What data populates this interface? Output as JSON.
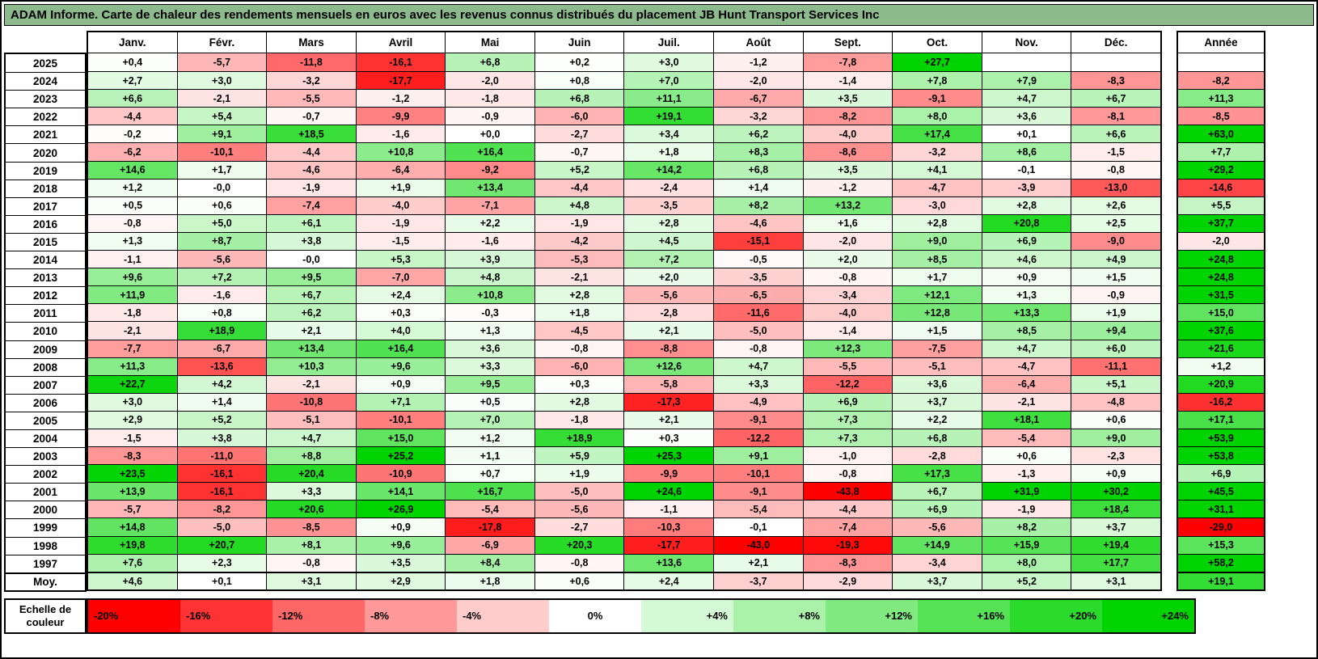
{
  "title": "ADAM Informe. Carte de chaleur des rendements mensuels en euros avec les revenus connus distribués du placement JB Hunt Transport Services Inc",
  "colors": {
    "title_bg": "#8CBA8C",
    "border": "#000000",
    "negative_max": "#FF0000",
    "neutral": "#FFFFFF",
    "positive_max": "#00D400"
  },
  "legend": {
    "label": "Echelle de couleur",
    "ticks": [
      "-20%",
      "-16%",
      "-12%",
      "-8%",
      "-4%",
      "0%",
      "+4%",
      "+8%",
      "+12%",
      "+16%",
      "+20%",
      "+24%"
    ]
  },
  "chart_data": {
    "type": "heatmap",
    "title": "Carte de chaleur des rendements mensuels en euros - JB Hunt Transport Services Inc",
    "unit": "%",
    "decimal_separator": ",",
    "columns": [
      "Janv.",
      "Févr.",
      "Mars",
      "Avril",
      "Mai",
      "Juin",
      "Juil.",
      "Août",
      "Sept.",
      "Oct.",
      "Nov.",
      "Déc."
    ],
    "annual_label": "Année",
    "average_label": "Moy.",
    "color_scale": {
      "negative_limit": -20,
      "positive_limit": 24,
      "negative_color": "#FF0000",
      "neutral_color": "#FFFFFF",
      "positive_color": "#00D400"
    },
    "rows": [
      {
        "label": "2025",
        "values": [
          "+0,4",
          "-5,7",
          "-11,8",
          "-16,1",
          "+6,8",
          "+0,2",
          "+3,0",
          "-1,2",
          "-7,8",
          "+27,7",
          "",
          ""
        ],
        "annual": ""
      },
      {
        "label": "2024",
        "values": [
          "+2,7",
          "+3,0",
          "-3,2",
          "-17,7",
          "-2,0",
          "+0,8",
          "+7,0",
          "-2,0",
          "-1,4",
          "+7,8",
          "+7,9",
          "-8,3"
        ],
        "annual": "-8,2"
      },
      {
        "label": "2023",
        "values": [
          "+6,6",
          "-2,1",
          "-5,5",
          "-1,2",
          "-1,8",
          "+6,8",
          "+11,1",
          "-6,7",
          "+3,5",
          "-9,1",
          "+4,7",
          "+6,7"
        ],
        "annual": "+11,3"
      },
      {
        "label": "2022",
        "values": [
          "-4,4",
          "+5,4",
          "-0,7",
          "-9,9",
          "-0,9",
          "-6,0",
          "+19,1",
          "-3,2",
          "-8,2",
          "+8,0",
          "+3,6",
          "-8,1"
        ],
        "annual": "-8,5"
      },
      {
        "label": "2021",
        "values": [
          "-0,2",
          "+9,1",
          "+18,5",
          "-1,6",
          "+0,0",
          "-2,7",
          "+3,4",
          "+6,2",
          "-4,0",
          "+17,4",
          "+0,1",
          "+6,6"
        ],
        "annual": "+63,0"
      },
      {
        "label": "2020",
        "values": [
          "-6,2",
          "-10,1",
          "-4,4",
          "+10,8",
          "+16,4",
          "-0,7",
          "+1,8",
          "+8,3",
          "-8,6",
          "-3,2",
          "+8,6",
          "-1,5"
        ],
        "annual": "+7,7"
      },
      {
        "label": "2019",
        "values": [
          "+14,6",
          "+1,7",
          "-4,6",
          "-6,4",
          "-9,2",
          "+5,2",
          "+14,2",
          "+6,8",
          "+3,5",
          "+4,1",
          "-0,1",
          "-0,8"
        ],
        "annual": "+29,2"
      },
      {
        "label": "2018",
        "values": [
          "+1,2",
          "-0,0",
          "-1,9",
          "+1,9",
          "+13,4",
          "-4,4",
          "-2,4",
          "+1,4",
          "-1,2",
          "-4,7",
          "-3,9",
          "-13,0"
        ],
        "annual": "-14,6"
      },
      {
        "label": "2017",
        "values": [
          "+0,5",
          "+0,6",
          "-7,4",
          "-4,0",
          "-7,1",
          "+4,8",
          "-3,5",
          "+8,2",
          "+13,2",
          "-3,0",
          "+2,8",
          "+2,6"
        ],
        "annual": "+5,5"
      },
      {
        "label": "2016",
        "values": [
          "-0,8",
          "+5,0",
          "+6,1",
          "-1,9",
          "+2,2",
          "-1,9",
          "+2,8",
          "-4,6",
          "+1,6",
          "+2,8",
          "+20,8",
          "+2,5"
        ],
        "annual": "+37,7"
      },
      {
        "label": "2015",
        "values": [
          "+1,3",
          "+8,7",
          "+3,8",
          "-1,5",
          "-1,6",
          "-4,2",
          "+4,5",
          "-15,1",
          "-2,0",
          "+9,0",
          "+6,9",
          "-9,0"
        ],
        "annual": "-2,0"
      },
      {
        "label": "2014",
        "values": [
          "-1,1",
          "-5,6",
          "-0,0",
          "+5,3",
          "+3,9",
          "-5,3",
          "+7,2",
          "-0,5",
          "+2,0",
          "+8,5",
          "+4,6",
          "+4,9"
        ],
        "annual": "+24,8"
      },
      {
        "label": "2013",
        "values": [
          "+9,6",
          "+7,2",
          "+9,5",
          "-7,0",
          "+4,8",
          "-2,1",
          "+2,0",
          "-3,5",
          "-0,8",
          "+1,7",
          "+0,9",
          "+1,5"
        ],
        "annual": "+24,8"
      },
      {
        "label": "2012",
        "values": [
          "+11,9",
          "-1,6",
          "+6,7",
          "+2,4",
          "+10,8",
          "+2,8",
          "-5,6",
          "-6,5",
          "-3,4",
          "+12,1",
          "+1,3",
          "-0,9"
        ],
        "annual": "+31,5"
      },
      {
        "label": "2011",
        "values": [
          "-1,8",
          "+0,8",
          "+6,2",
          "+0,3",
          "-0,3",
          "+1,8",
          "-2,8",
          "-11,6",
          "-4,0",
          "+12,8",
          "+13,3",
          "+1,9"
        ],
        "annual": "+15,0"
      },
      {
        "label": "2010",
        "values": [
          "-2,1",
          "+18,9",
          "+2,1",
          "+4,0",
          "+1,3",
          "-4,5",
          "+2,1",
          "-5,0",
          "-1,4",
          "+1,5",
          "+8,5",
          "+9,4"
        ],
        "annual": "+37,6"
      },
      {
        "label": "2009",
        "values": [
          "-7,7",
          "-6,7",
          "+13,4",
          "+16,4",
          "+3,6",
          "-0,8",
          "-8,8",
          "-0,8",
          "+12,3",
          "-7,5",
          "+4,7",
          "+6,0"
        ],
        "annual": "+21,6"
      },
      {
        "label": "2008",
        "values": [
          "+11,3",
          "-13,6",
          "+10,3",
          "+9,6",
          "+3,3",
          "-6,0",
          "+12,6",
          "+4,7",
          "-5,5",
          "-5,1",
          "-4,7",
          "-11,1"
        ],
        "annual": "+1,2"
      },
      {
        "label": "2007",
        "values": [
          "+22,7",
          "+4,2",
          "-2,1",
          "+0,9",
          "+9,5",
          "+0,3",
          "-5,8",
          "+3,3",
          "-12,2",
          "+3,6",
          "-6,4",
          "+5,1"
        ],
        "annual": "+20,9"
      },
      {
        "label": "2006",
        "values": [
          "+3,0",
          "+1,4",
          "-10,8",
          "+7,1",
          "+0,5",
          "+2,8",
          "-17,3",
          "-4,9",
          "+6,9",
          "+3,7",
          "-2,1",
          "-4,8"
        ],
        "annual": "-16,2"
      },
      {
        "label": "2005",
        "values": [
          "+2,9",
          "+5,2",
          "-5,1",
          "-10,1",
          "+7,0",
          "-1,8",
          "+2,1",
          "-9,1",
          "+7,3",
          "+2,2",
          "+18,1",
          "+0,6"
        ],
        "annual": "+17,1"
      },
      {
        "label": "2004",
        "values": [
          "-1,5",
          "+3,8",
          "+4,7",
          "+15,0",
          "+1,2",
          "+18,9",
          "+0,3",
          "-12,2",
          "+7,3",
          "+6,8",
          "-5,4",
          "+9,0"
        ],
        "annual": "+53,9"
      },
      {
        "label": "2003",
        "values": [
          "-8,3",
          "-11,0",
          "+8,8",
          "+25,2",
          "+1,1",
          "+5,9",
          "+25,3",
          "+9,1",
          "-1,0",
          "-2,8",
          "+0,6",
          "-2,3"
        ],
        "annual": "+53,8"
      },
      {
        "label": "2002",
        "values": [
          "+23,5",
          "-16,1",
          "+20,4",
          "-10,9",
          "+0,7",
          "+1,9",
          "-9,9",
          "-10,1",
          "-0,8",
          "+17,3",
          "-1,3",
          "+0,9"
        ],
        "annual": "+6,9"
      },
      {
        "label": "2001",
        "values": [
          "+13,9",
          "-16,1",
          "+3,3",
          "+14,1",
          "+16,7",
          "-5,0",
          "+24,6",
          "-9,1",
          "-43,8",
          "+6,7",
          "+31,9",
          "+30,2"
        ],
        "annual": "+45,5"
      },
      {
        "label": "2000",
        "values": [
          "-5,7",
          "-8,2",
          "+20,6",
          "+26,9",
          "-5,4",
          "-5,6",
          "-1,1",
          "-5,4",
          "-4,4",
          "+6,9",
          "-1,9",
          "+18,4"
        ],
        "annual": "+31,1"
      },
      {
        "label": "1999",
        "values": [
          "+14,8",
          "-5,0",
          "-8,5",
          "+0,9",
          "-17,8",
          "-2,7",
          "-10,3",
          "-0,1",
          "-7,4",
          "-5,6",
          "+8,2",
          "+3,7"
        ],
        "annual": "-29,0"
      },
      {
        "label": "1998",
        "values": [
          "+19,8",
          "+20,7",
          "+8,1",
          "+9,6",
          "-6,9",
          "+20,3",
          "-17,7",
          "-43,0",
          "-19,3",
          "+14,9",
          "+15,9",
          "+19,4"
        ],
        "annual": "+15,3"
      },
      {
        "label": "1997",
        "values": [
          "+7,6",
          "+2,3",
          "-0,8",
          "+3,5",
          "+8,4",
          "-0,8",
          "+13,6",
          "+2,1",
          "-8,3",
          "-3,4",
          "+8,0",
          "+17,7"
        ],
        "annual": "+58,2"
      },
      {
        "label": "Moy.",
        "values": [
          "+4,6",
          "+0,1",
          "+3,1",
          "+2,9",
          "+1,8",
          "+0,6",
          "+2,4",
          "-3,7",
          "-2,9",
          "+3,7",
          "+5,2",
          "+3,1"
        ],
        "annual": "+19,1"
      }
    ]
  }
}
